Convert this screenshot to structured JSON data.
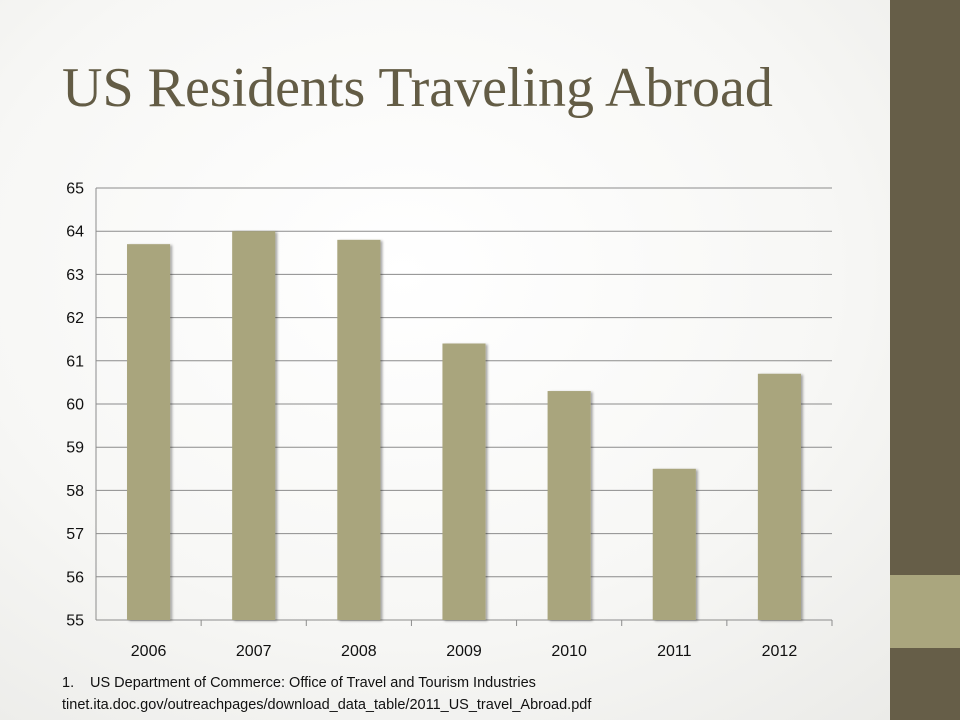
{
  "title": "US Residents Traveling Abroad",
  "colors": {
    "bar": "#a9a57d",
    "side_band": "#665e48",
    "side_accent": "#aaa67e",
    "title": "#635c45"
  },
  "chart_data": {
    "type": "bar",
    "categories": [
      "2006",
      "2007",
      "2008",
      "2009",
      "2010",
      "2011",
      "2012"
    ],
    "values": [
      63.7,
      64.0,
      63.8,
      61.4,
      60.3,
      58.5,
      60.7
    ],
    "ylim": [
      55,
      65
    ],
    "yticks": [
      "55",
      "56",
      "57",
      "58",
      "59",
      "60",
      "61",
      "62",
      "63",
      "64",
      "65"
    ],
    "grid": true
  },
  "source": {
    "number": "1.",
    "line1": "US Department of Commerce: Office of Travel and Tourism Industries",
    "line2": "tinet.ita.doc.gov/outreachpages/download_data_table/2011_US_travel_Abroad.pdf"
  }
}
